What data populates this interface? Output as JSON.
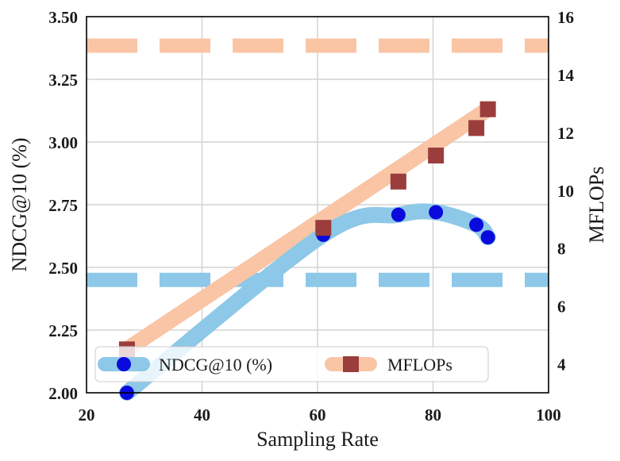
{
  "chart_data": {
    "type": "line",
    "xlabel": "Sampling Rate",
    "ylabel_left": "NDCG@10 (%)",
    "ylabel_right": "MFLOPs",
    "xlim": [
      20,
      100
    ],
    "ylim_left": [
      2.0,
      3.5
    ],
    "ylim_right": [
      3,
      16
    ],
    "xticks": [
      "20",
      "40",
      "60",
      "80",
      "100"
    ],
    "yticks_left": [
      "2.00",
      "2.25",
      "2.50",
      "2.75",
      "3.00",
      "3.25",
      "3.50"
    ],
    "yticks_right": [
      "4",
      "6",
      "8",
      "10",
      "12",
      "14",
      "16"
    ],
    "grid": true,
    "legend_position": "lower-left",
    "series": [
      {
        "name": "NDCG@10 (%)",
        "axis": "left",
        "marker": "circle",
        "marker_color": "#0a0adc",
        "line_color": "#8dc8e8",
        "x": [
          27,
          61,
          74,
          80.5,
          87.5,
          89.5
        ],
        "y": [
          2.0,
          2.63,
          2.71,
          2.72,
          2.67,
          2.62
        ],
        "reference_line": 2.45
      },
      {
        "name": "MFLOPs",
        "axis": "right",
        "marker": "square",
        "marker_color": "#9b3d3d",
        "line_color": "#f9c5a5",
        "x": [
          27,
          61,
          74,
          80.5,
          87.5,
          89.5
        ],
        "y": [
          4.5,
          8.7,
          10.3,
          11.2,
          12.15,
          12.8
        ],
        "reference_line": 15.0
      }
    ]
  }
}
